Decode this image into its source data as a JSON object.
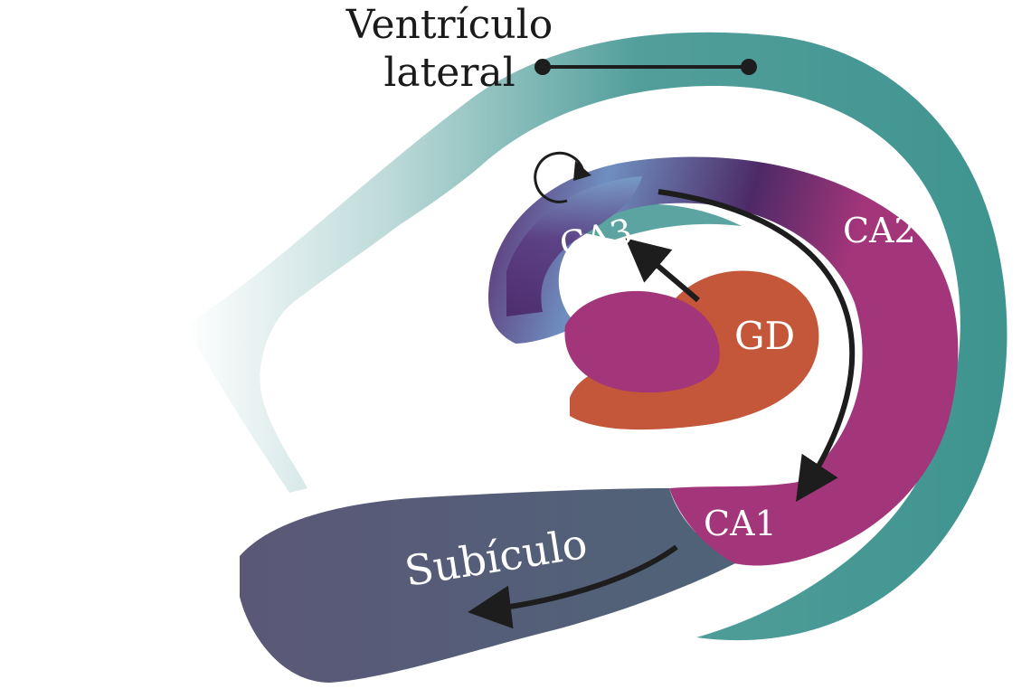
{
  "labels": {
    "ventriculo_line1": "Ventrículo",
    "ventriculo_line2": "lateral",
    "ca3": "CA3",
    "ca2": "CA2",
    "gd": "GD",
    "ca1": "CA1",
    "subiculo": "Subículo"
  },
  "colors": {
    "ventricle": "#3f9490",
    "ca_purple": "#5b2a6e",
    "ca_magenta": "#a3357a",
    "ca3_light": "#6f8fc0",
    "gd_orange": "#c4573a",
    "subiculum": "#565a78",
    "arrow": "#1d1d1d"
  }
}
